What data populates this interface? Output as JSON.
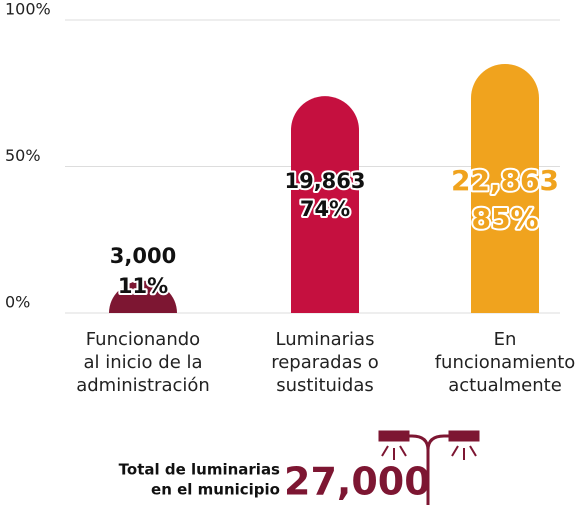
{
  "chart_data": {
    "type": "bar",
    "categories": [
      [
        "Funcionando",
        "al inicio de la",
        "administración"
      ],
      [
        "Luminarias",
        "reparadas o",
        "sustituidas"
      ],
      [
        "En",
        "funcionamiento",
        "actualmente"
      ]
    ],
    "values": [
      11,
      74,
      85
    ],
    "value_labels": [
      "11%",
      "74%",
      "85%"
    ],
    "count_labels": [
      "3,000",
      "19,863",
      "22,863"
    ],
    "colors": [
      "#7d1632",
      "#c5103f",
      "#f0a31e"
    ],
    "ylim": [
      0,
      100
    ],
    "yticks": [
      {
        "value": 0,
        "label": "0%"
      },
      {
        "value": 50,
        "label": "50%"
      },
      {
        "value": 100,
        "label": "100%"
      }
    ],
    "grid": true,
    "total_title": [
      "Total de luminarias",
      "en el municipio"
    ],
    "total": "27,000"
  }
}
